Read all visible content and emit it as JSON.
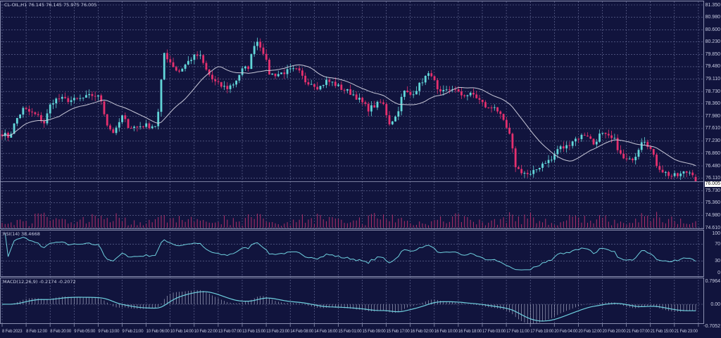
{
  "header": {
    "title": "CL-OIL,H1  76.145 76.145 75.975 76.005"
  },
  "rsi": {
    "label": "RSI(14) 38.4668",
    "levels": [
      "100",
      "70",
      "30",
      "0"
    ]
  },
  "macd": {
    "label": "MACD(12,26,9) -0.2174 -0.2072",
    "levels": [
      "0.7964",
      "0.00",
      "-0.7052"
    ]
  },
  "colors": {
    "background": "#11143d",
    "bull": "#62d6d9",
    "bear": "#e5306e",
    "ma": "#c8c8d8",
    "grid": "#6e739e",
    "indicator": "#6fd0df",
    "volume": "#b0306a"
  },
  "chart_data": {
    "type": "candlestick",
    "symbol": "CL-OIL",
    "timeframe": "H1",
    "last": {
      "open": 76.145,
      "high": 76.145,
      "low": 75.975,
      "close": 76.005
    },
    "y_ticks": [
      "81.350",
      "80.980",
      "80.600",
      "80.230",
      "79.850",
      "79.480",
      "79.110",
      "78.730",
      "78.360",
      "77.980",
      "77.610",
      "77.230",
      "76.860",
      "76.480",
      "76.110",
      "75.730",
      "75.360",
      "74.980",
      "74.610"
    ],
    "ylim": [
      74.61,
      81.35
    ],
    "current_price_label": "76.005",
    "x_ticks": [
      "8 Feb 2023",
      "8 Feb 12:00",
      "8 Feb 20:00",
      "9 Feb 05:00",
      "9 Feb 13:00",
      "9 Feb 21:00",
      "10 Feb 06:00",
      "10 Feb 14:00",
      "10 Feb 22:00",
      "13 Feb 07:00",
      "13 Feb 15:00",
      "13 Feb 23:00",
      "14 Feb 08:00",
      "14 Feb 16:00",
      "15 Feb 01:00",
      "15 Feb 09:00",
      "15 Feb 17:00",
      "16 Feb 02:00",
      "16 Feb 10:00",
      "16 Feb 18:00",
      "17 Feb 03:00",
      "17 Feb 11:00",
      "17 Feb 19:00",
      "20 Feb 04:00",
      "20 Feb 12:00",
      "20 Feb 20:00",
      "21 Feb 07:00",
      "21 Feb 15:00",
      "21 Feb 23:00"
    ],
    "close_path": [
      77.46,
      77.35,
      77.88,
      78.2,
      78.1,
      77.99,
      77.78,
      78.42,
      78.52,
      78.48,
      78.46,
      78.5,
      78.56,
      78.63,
      78.52,
      77.67,
      77.46,
      77.99,
      77.67,
      77.65,
      77.71,
      77.69,
      77.71,
      79.9,
      79.59,
      79.31,
      79.54,
      79.76,
      79.84,
      79.37,
      79.05,
      78.9,
      78.84,
      78.99,
      79.37,
      79.48,
      80.33,
      80.01,
      79.25,
      79.25,
      79.31,
      79.37,
      79.37,
      79.05,
      78.99,
      78.84,
      79.05,
      78.99,
      78.84,
      78.74,
      78.63,
      78.42,
      78.2,
      78.31,
      78.42,
      77.78,
      77.99,
      78.74,
      78.63,
      78.84,
      79.16,
      79.27,
      78.63,
      78.74,
      78.84,
      78.63,
      78.63,
      78.63,
      78.42,
      78.2,
      78.31,
      77.88,
      77.46,
      76.4,
      76.29,
      76.18,
      76.4,
      76.61,
      76.65,
      77.03,
      77.03,
      77.25,
      77.35,
      77.46,
      77.14,
      77.46,
      77.35,
      77.25,
      76.72,
      76.61,
      76.82,
      77.35,
      77.03,
      76.5,
      76.29,
      76.18,
      76.18,
      76.29,
      76.29,
      76.005
    ],
    "rsi_range": [
      0,
      100
    ],
    "rsi_levels": [
      70,
      30
    ],
    "macd_range": [
      -0.7052,
      0.7964
    ],
    "grid": true,
    "moving_average": true
  }
}
